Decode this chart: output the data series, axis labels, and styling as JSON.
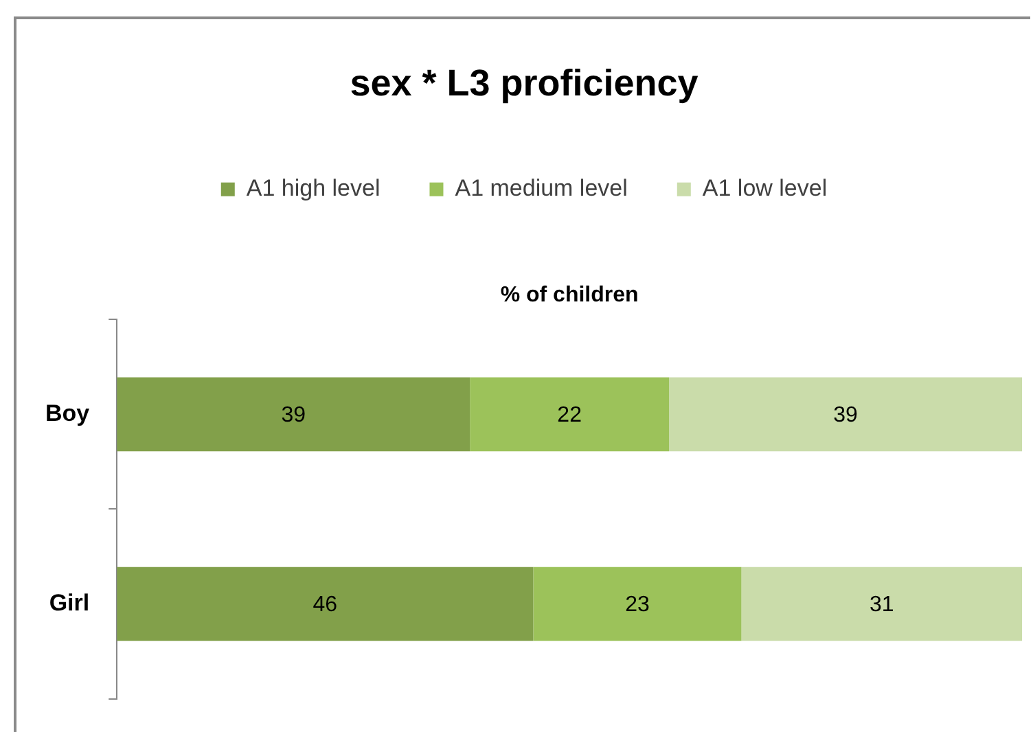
{
  "chart_data": {
    "type": "bar",
    "orientation": "horizontal",
    "stacked": true,
    "title": "sex * L3 proficiency",
    "xlabel": "% of children",
    "categories": [
      "Boy",
      "Girl"
    ],
    "series": [
      {
        "name": "A1 high level",
        "color": "#82a04a",
        "values": [
          39,
          46
        ]
      },
      {
        "name": "A1 medium level",
        "color": "#9cc25a",
        "values": [
          22,
          23
        ]
      },
      {
        "name": "A1 low level",
        "color": "#cadcaa",
        "values": [
          39,
          31
        ]
      }
    ],
    "xlim": [
      0,
      100
    ],
    "data_labels": true,
    "legend": "top",
    "grid": false,
    "tick_labels": "y"
  }
}
